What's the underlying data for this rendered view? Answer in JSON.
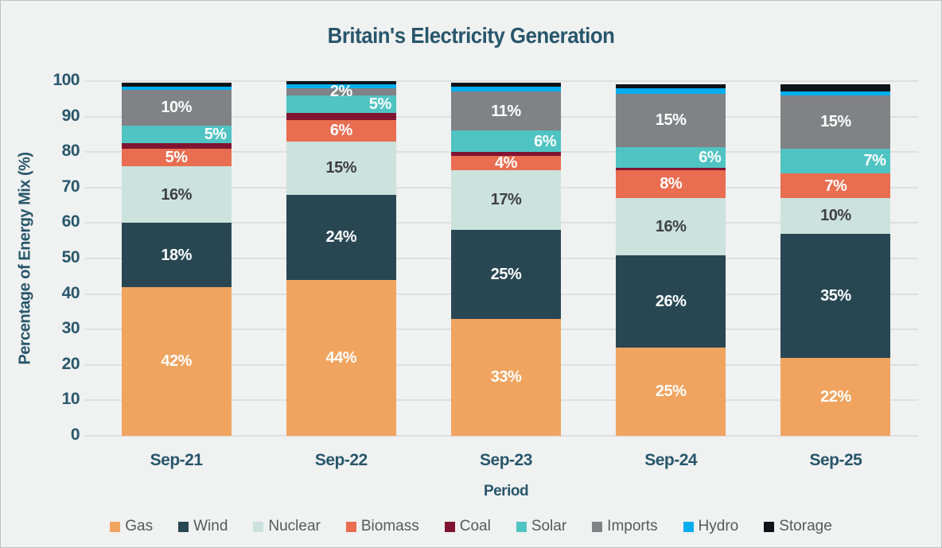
{
  "chart_data": {
    "type": "bar",
    "stacked": true,
    "title": "Britain's Electricity Generation",
    "xlabel": "Period",
    "ylabel": "Percentage of Energy Mix (%)",
    "categories": [
      "Sep-21",
      "Sep-22",
      "Sep-23",
      "Sep-24",
      "Sep-25"
    ],
    "series": [
      {
        "name": "Gas",
        "color": "#F0A45F",
        "values": [
          42,
          44,
          33,
          25,
          22
        ],
        "labeled": true,
        "label_color": "#FFFFFF"
      },
      {
        "name": "Wind",
        "color": "#284753",
        "values": [
          18,
          24,
          25,
          26,
          35
        ],
        "labeled": true,
        "label_color": "#FFFFFF"
      },
      {
        "name": "Nuclear",
        "color": "#CCE2DD",
        "values": [
          16,
          15,
          17,
          16,
          10
        ],
        "labeled": true,
        "label_color": "#3F4040"
      },
      {
        "name": "Biomass",
        "color": "#E96D50",
        "values": [
          5,
          6,
          4,
          8,
          7
        ],
        "labeled": true,
        "label_color": "#FFFFFF"
      },
      {
        "name": "Coal",
        "color": "#801431",
        "values": [
          1.5,
          2,
          1,
          0.5,
          0
        ],
        "labeled": false,
        "label_color": "#FFFFFF"
      },
      {
        "name": "Solar",
        "color": "#50C3C3",
        "values": [
          5,
          5,
          6,
          6,
          7
        ],
        "labeled": true,
        "label_color": "#FFFFFF",
        "label_align": "right"
      },
      {
        "name": "Imports",
        "color": "#808285",
        "values": [
          10,
          2,
          11,
          15,
          15
        ],
        "labeled": true,
        "label_color": "#FFFFFF"
      },
      {
        "name": "Hydro",
        "color": "#00AEEF",
        "values": [
          1,
          1,
          1.5,
          1.5,
          1
        ],
        "labeled": false,
        "label_color": "#FFFFFF"
      },
      {
        "name": "Storage",
        "color": "#0D1419",
        "values": [
          1,
          1,
          1,
          1,
          2
        ],
        "labeled": false,
        "label_color": "#FFFFFF"
      }
    ],
    "ylim": [
      0,
      100
    ],
    "yticks": [
      0,
      10,
      20,
      30,
      40,
      50,
      60,
      70,
      80,
      90,
      100
    ],
    "grid": true,
    "legend_position": "bottom",
    "label_suffix": "%"
  },
  "colors": {
    "background": "#F0F1F1",
    "gridline": "#DEDFDF",
    "axis_text": "#27566B",
    "legend_text": "#595959",
    "frame_border": "#BFC0C0"
  }
}
